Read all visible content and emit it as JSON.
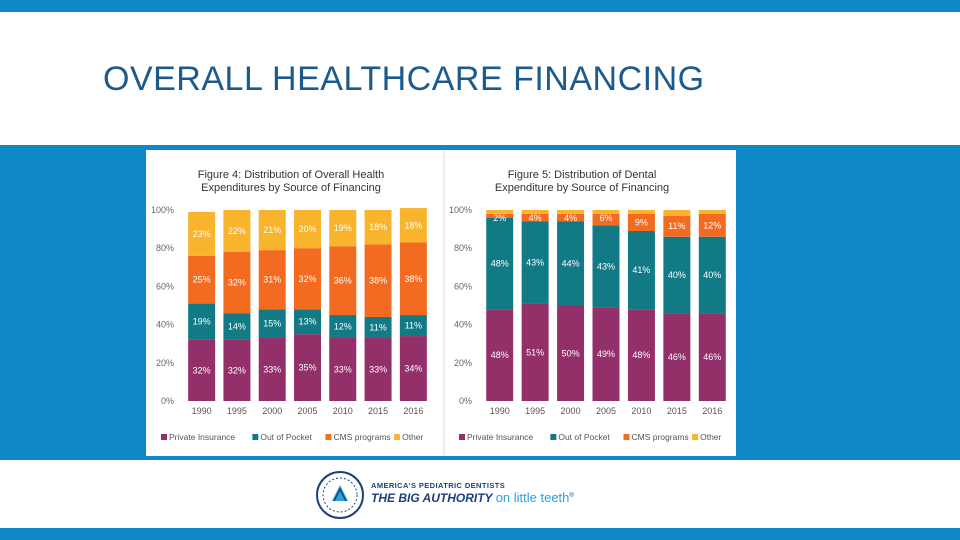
{
  "slide": {
    "title": "OVERALL HEALTHCARE FINANCING",
    "colors": {
      "band": "#0e88c6",
      "title": "#1d5a8c"
    }
  },
  "logo": {
    "icon": "pediatric-dentist-seal-icon",
    "line1": "AMERICA'S PEDIATRIC DENTISTS",
    "line2": "THE BIG AUTHORITY",
    "line3": "on little teeth",
    "trademark": "®"
  },
  "chart_data": [
    {
      "type": "bar",
      "stacked": true,
      "title": "Figure 4: Distribution of Overall Health Expenditures by Source of Financing",
      "title_lines": [
        "Figure 4: Distribution of Overall Health",
        "Expenditures by Source of Financing"
      ],
      "categories": [
        "1990",
        "1995",
        "2000",
        "2005",
        "2010",
        "2015",
        "2016"
      ],
      "ylim": [
        0,
        100
      ],
      "yticks": [
        "0%",
        "20%",
        "40%",
        "60%",
        "80%",
        "100%"
      ],
      "legend_position": "bottom",
      "series": [
        {
          "name": "Private Insurance",
          "color": "#93306a",
          "values": [
            32,
            32,
            33,
            35,
            33,
            33,
            34
          ],
          "labels": [
            "32%",
            "32%",
            "33%",
            "35%",
            "33%",
            "33%",
            "34%"
          ]
        },
        {
          "name": "Out of Pocket",
          "color": "#117a84",
          "values": [
            19,
            14,
            15,
            13,
            12,
            11,
            11
          ],
          "labels": [
            "19%",
            "14%",
            "15%",
            "13%",
            "12%",
            "11%",
            "11%"
          ]
        },
        {
          "name": "CMS programs",
          "color": "#f26b21",
          "values": [
            25,
            32,
            31,
            32,
            36,
            38,
            38
          ],
          "labels": [
            "25%",
            "32%",
            "31%",
            "32%",
            "36%",
            "38%",
            "38%"
          ]
        },
        {
          "name": "Other",
          "color": "#f7b42c",
          "values": [
            23,
            22,
            21,
            20,
            19,
            18,
            18
          ],
          "labels": [
            "23%",
            "22%",
            "21%",
            "20%",
            "19%",
            "18%",
            "18%"
          ]
        }
      ]
    },
    {
      "type": "bar",
      "stacked": true,
      "title": "Figure 5: Distribution of Dental Expenditure by Source of Financing",
      "title_lines": [
        "Figure 5: Distribution of Dental",
        "Expenditure by Source of Financing"
      ],
      "categories": [
        "1990",
        "1995",
        "2000",
        "2005",
        "2010",
        "2015",
        "2016"
      ],
      "ylim": [
        0,
        100
      ],
      "yticks": [
        "0%",
        "20%",
        "40%",
        "60%",
        "80%",
        "100%"
      ],
      "legend_position": "bottom",
      "series": [
        {
          "name": "Private Insurance",
          "color": "#93306a",
          "values": [
            48,
            51,
            50,
            49,
            48,
            46,
            46
          ],
          "labels": [
            "48%",
            "51%",
            "50%",
            "49%",
            "48%",
            "46%",
            "46%"
          ]
        },
        {
          "name": "Out of Pocket",
          "color": "#117a84",
          "values": [
            48,
            43,
            44,
            43,
            41,
            40,
            40
          ],
          "labels": [
            "48%",
            "43%",
            "44%",
            "43%",
            "41%",
            "40%",
            "40%"
          ]
        },
        {
          "name": "CMS programs",
          "color": "#f26b21",
          "values": [
            2,
            4,
            4,
            6,
            9,
            11,
            12
          ],
          "labels": [
            "2%",
            "4%",
            "4%",
            "6%",
            "9%",
            "11%",
            "12%"
          ]
        },
        {
          "name": "Other",
          "color": "#f7b42c",
          "values": [
            2,
            2,
            2,
            2,
            2,
            3,
            2
          ],
          "labels": [
            "",
            "",
            "",
            "",
            "",
            "",
            ""
          ]
        }
      ]
    }
  ]
}
